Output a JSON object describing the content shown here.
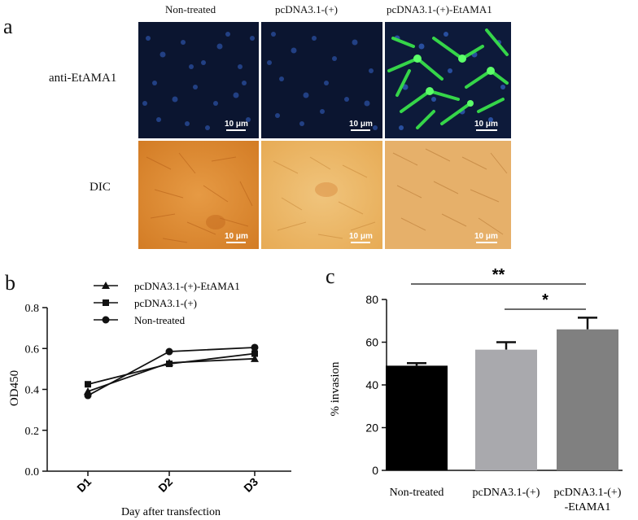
{
  "panel_a": {
    "letter": "a",
    "columns": [
      "Non-treated",
      "pcDNA3.1-(+)",
      "pcDNA3.1-(+)-EtAMA1"
    ],
    "rows": [
      "anti-EtAMA1",
      "DIC"
    ],
    "scale_bar": "10 μm",
    "colors": {
      "fluor_bg": "#0b1530",
      "nuclei": "#2a4fa0",
      "green": "#38e04a",
      "dic_dark": "#d9852e",
      "dic_light": "#e8b060"
    }
  },
  "panel_b": {
    "letter": "b",
    "legend": [
      "pcDNA3.1-(+)-EtAMA1",
      "pcDNA3.1-(+)",
      "Non-treated"
    ],
    "chart_data": {
      "type": "line",
      "ylabel": "OD450",
      "xlabel": "Day after transfection",
      "categories": [
        "D1",
        "D2",
        "D3"
      ],
      "ylim": [
        0.0,
        0.8
      ],
      "yticks": [
        "0.0",
        "0.2",
        "0.4",
        "0.6",
        "0.8"
      ],
      "series": [
        {
          "name": "pcDNA3.1-(+)-EtAMA1",
          "marker": "triangle",
          "values": [
            0.39,
            0.53,
            0.55
          ]
        },
        {
          "name": "pcDNA3.1-(+)",
          "marker": "square",
          "values": [
            0.425,
            0.525,
            0.575
          ]
        },
        {
          "name": "Non-treated",
          "marker": "circle",
          "values": [
            0.37,
            0.585,
            0.605
          ]
        }
      ]
    }
  },
  "panel_c": {
    "letter": "c",
    "chart_data": {
      "type": "bar",
      "ylabel": "% invasion",
      "categories": [
        "Non-treated",
        "pcDNA3.1-(+)",
        "pcDNA3.1-(+)\n-EtAMA1"
      ],
      "values": [
        49,
        56.5,
        66
      ],
      "errors": [
        1.2,
        3.5,
        5.5
      ],
      "colors": [
        "#000000",
        "#a9a9ad",
        "#808080"
      ],
      "ylim": [
        0,
        80
      ],
      "yticks": [
        "0",
        "20",
        "40",
        "60",
        "80"
      ],
      "significance": [
        {
          "label": "**",
          "from": 0,
          "to": 2
        },
        {
          "label": "*",
          "from": 1,
          "to": 2
        }
      ]
    }
  }
}
